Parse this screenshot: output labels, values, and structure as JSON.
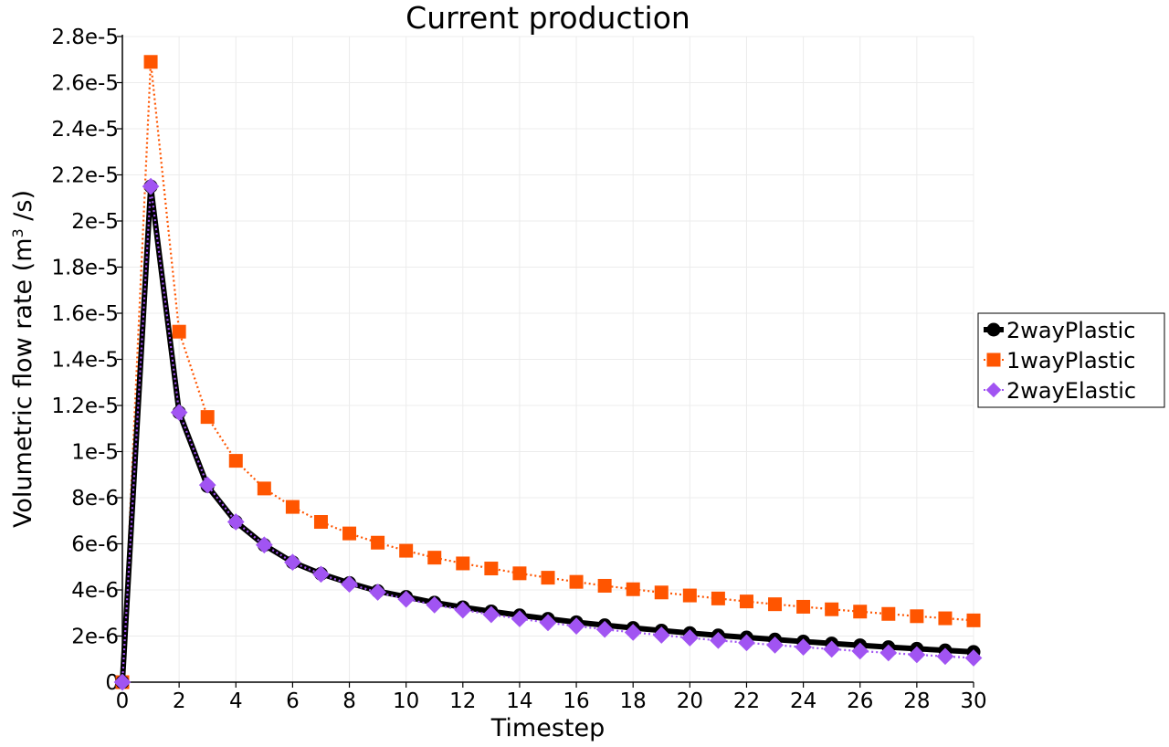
{
  "chart_data": {
    "type": "line",
    "title": "Current production",
    "xlabel": "Timestep",
    "ylabel_main": "Volumetric flow rate (m",
    "ylabel_sup": "3",
    "ylabel_tail": " /s)",
    "xlim": [
      0,
      30
    ],
    "ylim": [
      0,
      2.8e-05
    ],
    "xticks": [
      0,
      2,
      4,
      6,
      8,
      10,
      12,
      14,
      16,
      18,
      20,
      22,
      24,
      26,
      28,
      30
    ],
    "yticks": [
      0,
      2e-06,
      4e-06,
      6e-06,
      8e-06,
      1e-05,
      1.2e-05,
      1.4e-05,
      1.6e-05,
      1.8e-05,
      2e-05,
      2.2e-05,
      2.4e-05,
      2.6e-05,
      2.8e-05
    ],
    "ytick_labels": [
      "0",
      "2e-6",
      "4e-6",
      "6e-6",
      "8e-6",
      "1e-5",
      "1.2e-5",
      "1.4e-5",
      "1.6e-5",
      "1.8e-5",
      "2e-5",
      "2.2e-5",
      "2.4e-5",
      "2.6e-5",
      "2.8e-5"
    ],
    "xtick_labels": [
      "0",
      "2",
      "4",
      "6",
      "8",
      "10",
      "12",
      "14",
      "16",
      "18",
      "20",
      "22",
      "24",
      "26",
      "28",
      "30"
    ],
    "grid": true,
    "legend_position": "right",
    "x": [
      0,
      1,
      2,
      3,
      4,
      5,
      6,
      7,
      8,
      9,
      10,
      11,
      12,
      13,
      14,
      15,
      16,
      17,
      18,
      19,
      20,
      21,
      22,
      23,
      24,
      25,
      26,
      27,
      28,
      29,
      30
    ],
    "series": [
      {
        "name": "2wayPlastic",
        "color": "#000000",
        "marker": "circle",
        "line": "solid",
        "values": [
          0,
          2.15e-05,
          1.17e-05,
          8.5e-06,
          6.95e-06,
          5.95e-06,
          5.2e-06,
          4.7e-06,
          4.3e-06,
          3.95e-06,
          3.7e-06,
          3.45e-06,
          3.25e-06,
          3.07e-06,
          2.9e-06,
          2.75e-06,
          2.6e-06,
          2.47e-06,
          2.35e-06,
          2.24e-06,
          2.13e-06,
          2.03e-06,
          1.94e-06,
          1.85e-06,
          1.76e-06,
          1.68e-06,
          1.6e-06,
          1.52e-06,
          1.45e-06,
          1.38e-06,
          1.31e-06
        ]
      },
      {
        "name": "1wayPlastic",
        "color": "#ff5500",
        "marker": "square",
        "line": "dotted",
        "values": [
          0,
          2.69e-05,
          1.52e-05,
          1.15e-05,
          9.6e-06,
          8.4e-06,
          7.6e-06,
          6.95e-06,
          6.45e-06,
          6.05e-06,
          5.7e-06,
          5.4e-06,
          5.15e-06,
          4.93e-06,
          4.72e-06,
          4.53e-06,
          4.35e-06,
          4.18e-06,
          4.03e-06,
          3.89e-06,
          3.76e-06,
          3.63e-06,
          3.5e-06,
          3.38e-06,
          3.27e-06,
          3.16e-06,
          3.06e-06,
          2.96e-06,
          2.86e-06,
          2.77e-06,
          2.68e-06
        ]
      },
      {
        "name": "2wayElastic",
        "color": "#a154f2",
        "marker": "diamond",
        "line": "dotted",
        "values": [
          0,
          2.15e-05,
          1.17e-05,
          8.55e-06,
          6.95e-06,
          5.95e-06,
          5.2e-06,
          4.68e-06,
          4.25e-06,
          3.9e-06,
          3.6e-06,
          3.35e-06,
          3.13e-06,
          2.93e-06,
          2.75e-06,
          2.58e-06,
          2.43e-06,
          2.29e-06,
          2.16e-06,
          2.04e-06,
          1.92e-06,
          1.81e-06,
          1.71e-06,
          1.61e-06,
          1.52e-06,
          1.43e-06,
          1.35e-06,
          1.27e-06,
          1.19e-06,
          1.12e-06,
          1.05e-06
        ]
      }
    ]
  }
}
